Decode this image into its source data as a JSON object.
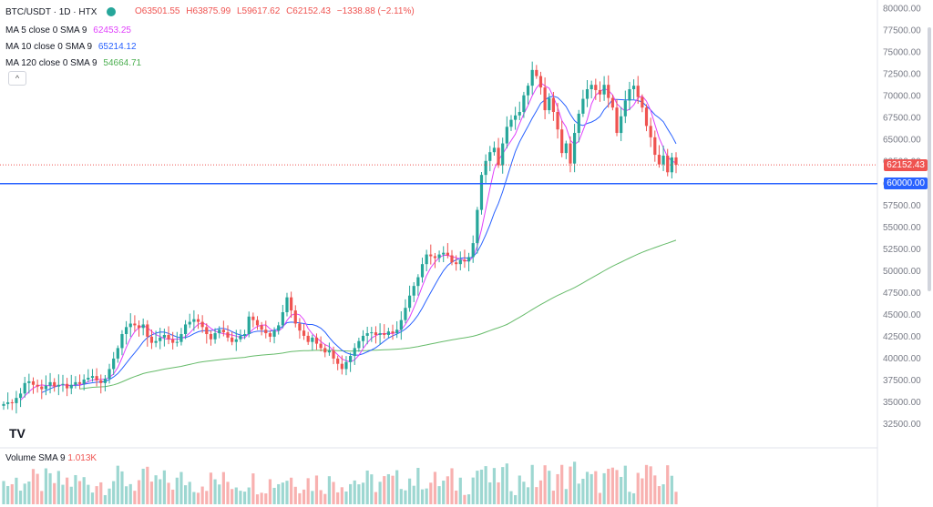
{
  "symbol": {
    "title": "BTC/USDT · 1D · HTX",
    "ohlc": {
      "o": "O63501.55",
      "h": "H63875.99",
      "l": "L59617.62",
      "c": "C62152.43",
      "chg": "−1338.88 (−2.11%)"
    }
  },
  "indicators": [
    {
      "label": "MA 5 close 0 SMA 9",
      "value": "62453.25",
      "color": "#e040fb"
    },
    {
      "label": "MA 10 close 0 SMA 9",
      "value": "65214.12",
      "color": "#2962ff"
    },
    {
      "label": "MA 120 close 0 SMA 9",
      "value": "54664.71",
      "color": "#4caf50"
    }
  ],
  "volume_legend": {
    "label": "Volume SMA 9",
    "value": "1.013K"
  },
  "price_tags": {
    "last": "62152.43",
    "level": "60000.00"
  },
  "logo": "TV",
  "collapse": "^",
  "colors": {
    "up": "#26a69a",
    "down": "#ef5350",
    "level_line": "#2962ff",
    "last_line": "#ef5350"
  },
  "chart_data": {
    "type": "candlestick",
    "ylim": [
      30000,
      81000
    ],
    "yticks": [
      "32500.00",
      "35000.00",
      "37500.00",
      "40000.00",
      "42500.00",
      "45000.00",
      "47500.00",
      "50000.00",
      "52500.00",
      "55000.00",
      "57500.00",
      "60000.00",
      "62500.00",
      "65000.00",
      "67500.00",
      "70000.00",
      "72500.00",
      "75000.00",
      "77500.00",
      "80000.00"
    ],
    "horizontal_line": 60000,
    "last_price": 62152.43,
    "close": [
      34800,
      35000,
      34900,
      35500,
      36000,
      37200,
      37400,
      37000,
      36800,
      36500,
      36900,
      37300,
      36800,
      37000,
      37100,
      36600,
      37000,
      37300,
      37100,
      37600,
      37800,
      38000,
      37500,
      37200,
      37700,
      38800,
      40000,
      41200,
      42800,
      43600,
      44000,
      43800,
      43500,
      43900,
      42500,
      41800,
      42000,
      42400,
      42700,
      42200,
      41800,
      41900,
      42800,
      43900,
      44200,
      44500,
      44200,
      43600,
      42800,
      42200,
      42900,
      43300,
      43000,
      42400,
      41900,
      42200,
      42600,
      42800,
      44800,
      44400,
      43800,
      43300,
      42900,
      42500,
      43200,
      43800,
      45300,
      47000,
      45500,
      44000,
      43200,
      42600,
      41900,
      42400,
      41700,
      41200,
      40700,
      40900,
      40000,
      39400,
      38800,
      39600,
      40300,
      41200,
      42000,
      42600,
      42900,
      43000,
      42700,
      42900,
      42700,
      43100,
      42900,
      43300,
      44400,
      45800,
      47200,
      48300,
      49300,
      50800,
      51900,
      51700,
      51500,
      51900,
      52100,
      51800,
      51000,
      50800,
      51300,
      51100,
      51600,
      53200,
      57000,
      61000,
      62600,
      63600,
      64100,
      62100,
      64600,
      66500,
      67300,
      67800,
      68200,
      70100,
      71200,
      73000,
      72300,
      71000,
      68400,
      69800,
      68200,
      66200,
      63500,
      64600,
      62300,
      65800,
      68000,
      69700,
      70800,
      71300,
      70700,
      70200,
      71300,
      69800,
      68700,
      65800,
      67700,
      69500,
      70800,
      71200,
      69900,
      68700,
      66600,
      65300,
      63300,
      62200,
      63200,
      61300,
      63000,
      62152
    ]
  }
}
